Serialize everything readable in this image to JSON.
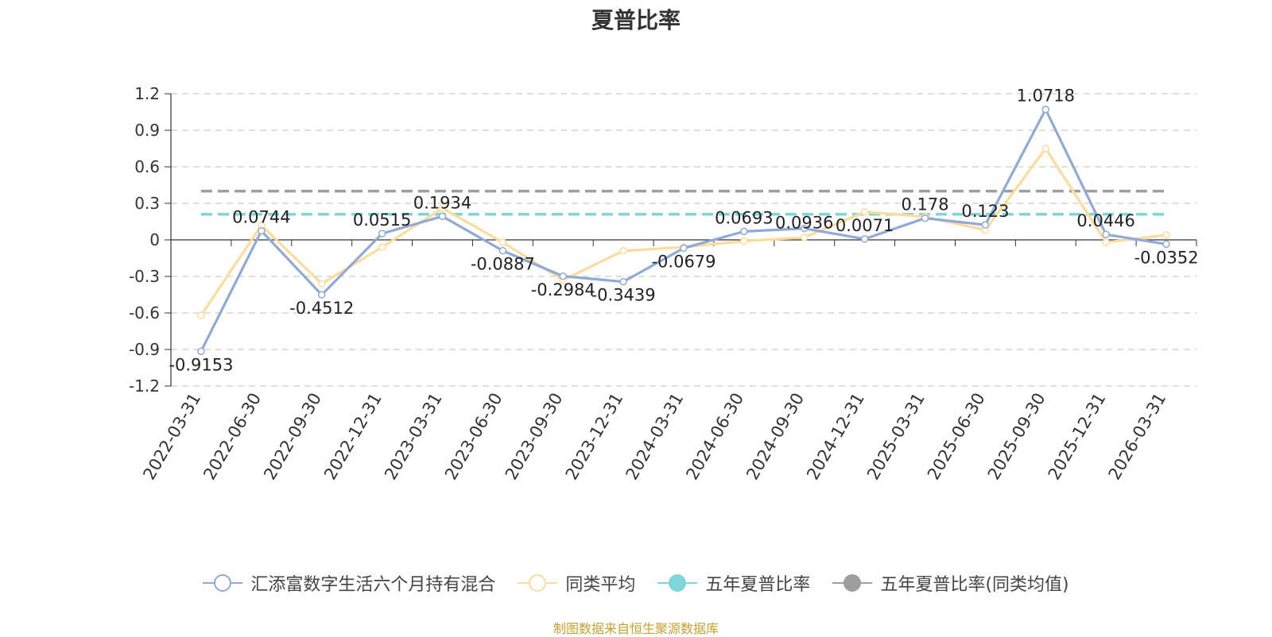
{
  "chart_data": {
    "type": "line",
    "title": "夏普比率",
    "categories": [
      "2022-03-31",
      "2022-06-30",
      "2022-09-30",
      "2022-12-31",
      "2023-03-31",
      "2023-06-30",
      "2023-09-30",
      "2023-12-31",
      "2024-03-31",
      "2024-06-30",
      "2024-09-30",
      "2024-12-31",
      "2025-03-31",
      "2025-06-30",
      "2025-09-30",
      "2025-12-31",
      "2026-03-31"
    ],
    "ylim": [
      -1.2,
      1.2
    ],
    "yticks": [
      1.2,
      0.9,
      0.6,
      0.3,
      0,
      -0.3,
      -0.6,
      -0.9,
      -1.2
    ],
    "ytick_labels": [
      "1.2",
      "0.9",
      "0.6",
      "0.3",
      "0",
      "-0.3",
      "-0.6",
      "-0.9",
      "-1.2"
    ],
    "grid": true,
    "legend_position": "bottom",
    "series": [
      {
        "name": "汇添富数字生活六个月持有混合",
        "color": "#8eaad8",
        "values": [
          -0.9153,
          0.0744,
          -0.4512,
          0.0515,
          0.1934,
          -0.0887,
          -0.2984,
          -0.3439,
          -0.0679,
          0.0693,
          0.0936,
          0.0071,
          0.178,
          0.123,
          1.0718,
          0.0446,
          -0.0352
        ],
        "labels": [
          "-0.9153",
          "0.0744",
          "-0.4512",
          "0.0515",
          "0.1934",
          "-0.0887",
          "-0.2984",
          "-0.3439",
          "-0.0679",
          "0.0693",
          "0.0936",
          "0.0071",
          "0.178",
          "0.123",
          "1.0718",
          "0.0446",
          "-0.0352"
        ]
      },
      {
        "name": "同类平均",
        "color": "#fddb9b",
        "values": [
          -0.62,
          0.12,
          -0.36,
          -0.06,
          0.26,
          -0.02,
          -0.33,
          -0.09,
          -0.06,
          -0.01,
          0.02,
          0.23,
          0.19,
          0.08,
          0.75,
          -0.02,
          0.04
        ]
      },
      {
        "name": "五年夏普比率",
        "color": "#7fd6d8",
        "value": 0.21
      },
      {
        "name": "五年夏普比率(同类均值)",
        "color": "#9e9e9e",
        "value": 0.4
      }
    ]
  },
  "source_text": "制图数据来自恒生聚源数据库"
}
